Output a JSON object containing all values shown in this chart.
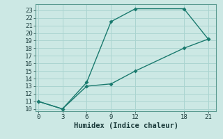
{
  "xlabel": "Humidex (Indice chaleur)",
  "bg_color": "#cce8e4",
  "grid_color": "#aad4d0",
  "line_color": "#1a7a6e",
  "line1_x": [
    0,
    3,
    6,
    9,
    12,
    18,
    21
  ],
  "line1_y": [
    11,
    10,
    13.5,
    21.5,
    23.2,
    23.2,
    19.2
  ],
  "line2_x": [
    0,
    3,
    6,
    9,
    12,
    18,
    21
  ],
  "line2_y": [
    11,
    10,
    13.0,
    13.3,
    15.0,
    18.0,
    19.2
  ],
  "xlim": [
    -0.3,
    22
  ],
  "ylim": [
    9.7,
    23.8
  ],
  "xticks": [
    0,
    3,
    6,
    9,
    12,
    18,
    21
  ],
  "yticks": [
    10,
    11,
    12,
    13,
    14,
    15,
    16,
    17,
    18,
    19,
    20,
    21,
    22,
    23
  ],
  "markersize": 3,
  "linewidth": 1.0,
  "tick_fontsize": 6.5,
  "xlabel_fontsize": 7.5
}
